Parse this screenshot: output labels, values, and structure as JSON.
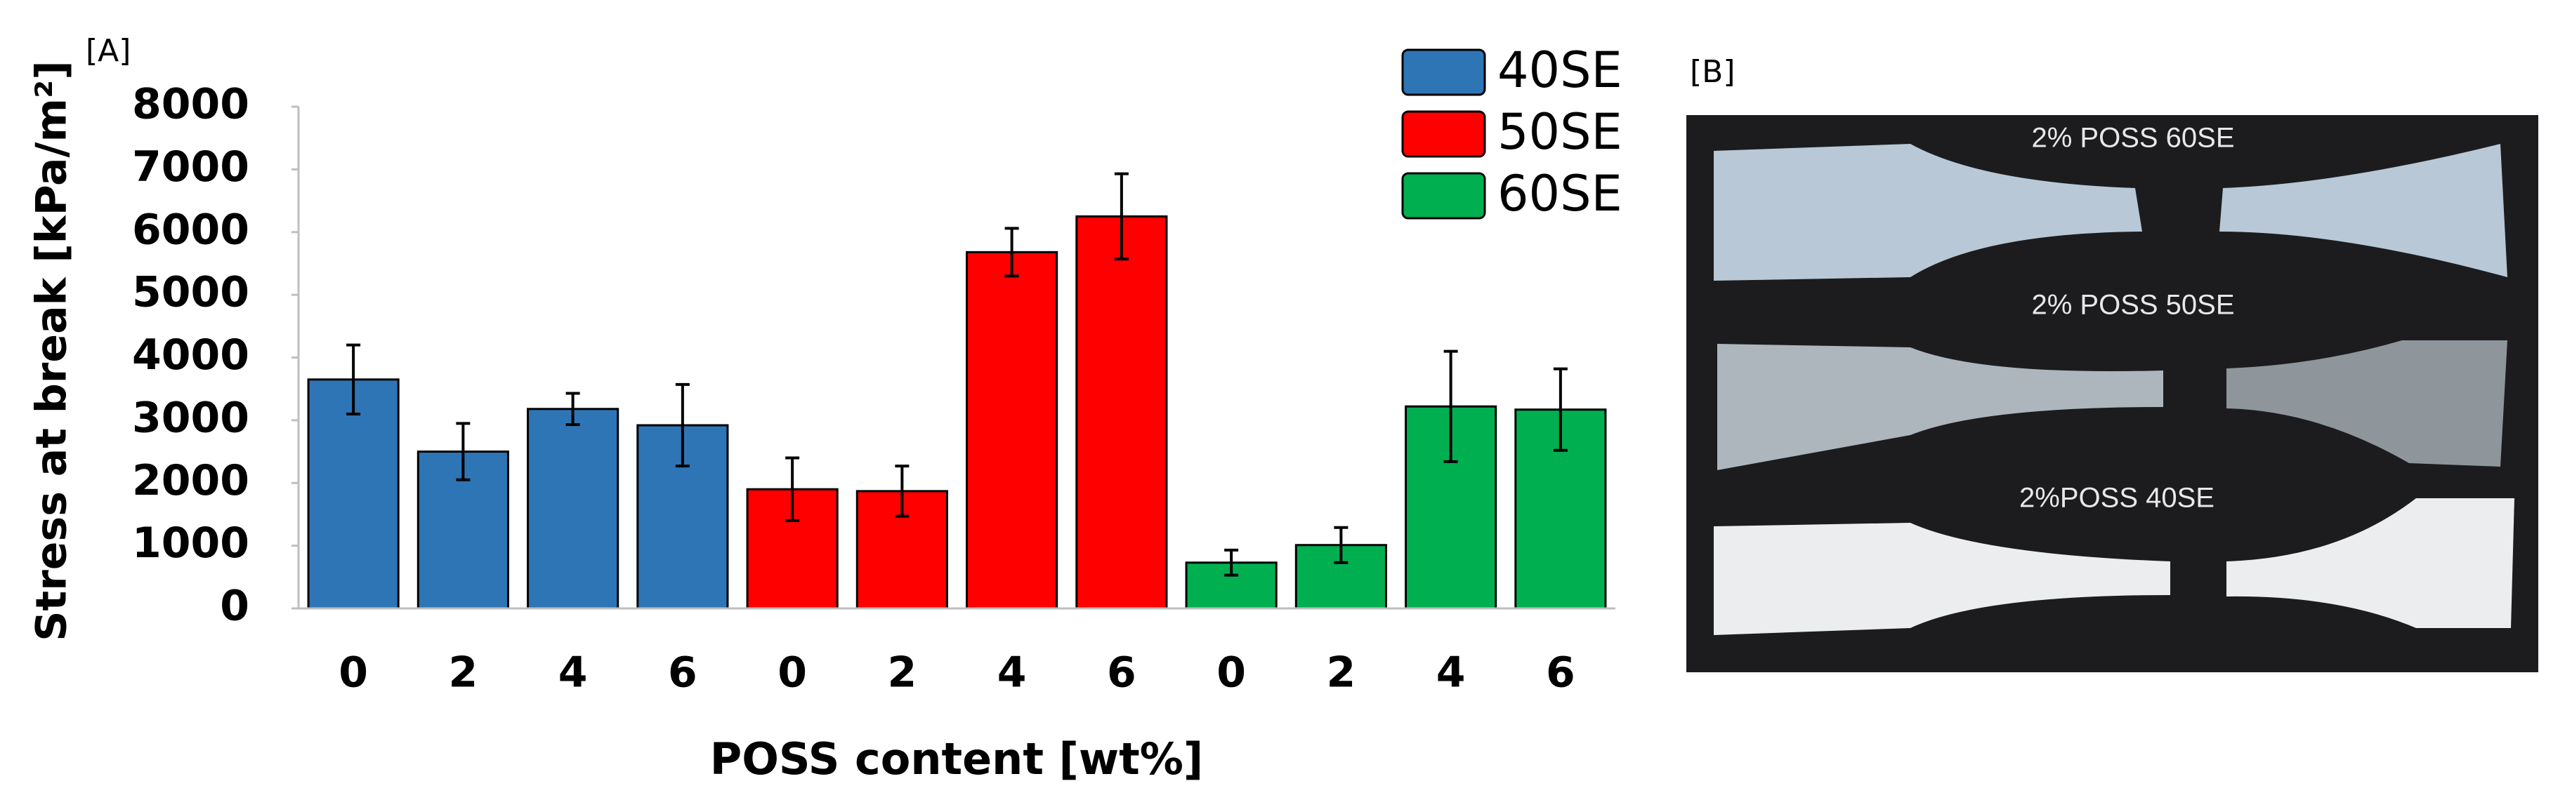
{
  "panel_a_label": "[A]",
  "chart_data": {
    "type": "bar",
    "categories": [
      "0",
      "2",
      "4",
      "6",
      "0",
      "2",
      "4",
      "6",
      "0",
      "2",
      "4",
      "6"
    ],
    "series": [
      {
        "name": "40SE",
        "color": "#2e75b6",
        "values": [
          3650,
          2500,
          3180,
          2920,
          null,
          null,
          null,
          null,
          null,
          null,
          null,
          null
        ],
        "errors": [
          550,
          450,
          250,
          650,
          null,
          null,
          null,
          null,
          null,
          null,
          null,
          null
        ]
      },
      {
        "name": "50SE",
        "color": "#ff0000",
        "values": [
          null,
          null,
          null,
          null,
          1900,
          1870,
          5680,
          6250,
          null,
          null,
          null,
          null
        ],
        "errors": [
          null,
          null,
          null,
          null,
          500,
          400,
          380,
          680,
          null,
          null,
          null,
          null
        ]
      },
      {
        "name": "60SE",
        "color": "#00b050",
        "values": [
          null,
          null,
          null,
          null,
          null,
          null,
          null,
          null,
          730,
          1010,
          3220,
          3170
        ],
        "errors": [
          null,
          null,
          null,
          null,
          null,
          null,
          null,
          null,
          200,
          280,
          880,
          650
        ]
      }
    ],
    "x_label": "POSS content [wt%]",
    "y_label": "Stress at break [kPa/m²]",
    "ylim": [
      0,
      8000
    ],
    "yticks": [
      0,
      1000,
      2000,
      3000,
      4000,
      5000,
      6000,
      7000,
      8000
    ],
    "grid": false,
    "legend": "top-right"
  },
  "panel_b": {
    "label": "[B]",
    "photo_labels": [
      "2% POSS 60SE",
      "2% POSS 50SE",
      "2%POSS 40SE"
    ]
  }
}
